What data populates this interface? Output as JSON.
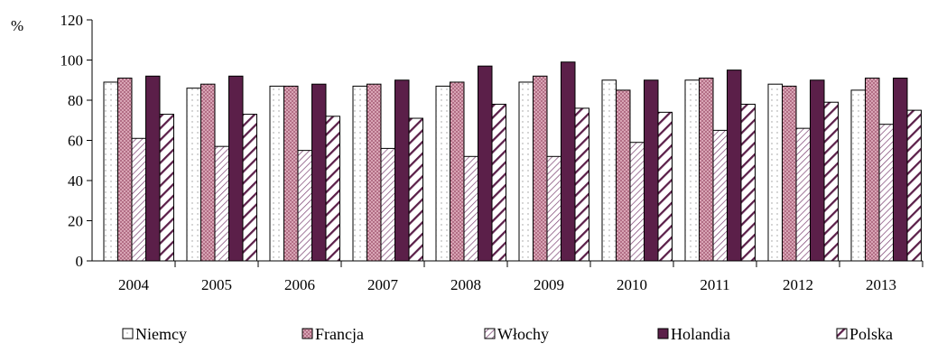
{
  "chart_data": {
    "type": "bar",
    "title": "",
    "xlabel": "",
    "ylabel": "%",
    "ylim": [
      0,
      120
    ],
    "yticks": [
      0,
      20,
      40,
      60,
      80,
      100,
      120
    ],
    "categories": [
      "2004",
      "2005",
      "2006",
      "2007",
      "2008",
      "2009",
      "2010",
      "2011",
      "2012",
      "2013"
    ],
    "series": [
      {
        "name": "Niemcy",
        "pattern": "dots",
        "values": [
          89,
          86,
          87,
          87,
          87,
          89,
          90,
          90,
          88,
          85
        ]
      },
      {
        "name": "Francja",
        "pattern": "crosshatch",
        "values": [
          91,
          88,
          87,
          88,
          89,
          92,
          85,
          91,
          87,
          91
        ]
      },
      {
        "name": "Włochy",
        "pattern": "thin-diag",
        "values": [
          61,
          57,
          55,
          56,
          52,
          52,
          59,
          65,
          66,
          68
        ]
      },
      {
        "name": "Holandia",
        "pattern": "solid",
        "values": [
          92,
          92,
          88,
          90,
          97,
          99,
          90,
          95,
          90,
          91
        ]
      },
      {
        "name": "Polska",
        "pattern": "thick-diag",
        "values": [
          73,
          73,
          72,
          71,
          78,
          76,
          74,
          78,
          79,
          75
        ]
      }
    ],
    "grid": false,
    "legend": "bottom",
    "colors": {
      "francja": "#d9a3b4",
      "holandia": "#5b1f49",
      "polska_stripe": "#5b1f49",
      "wlochy_stripe": "#7a4070"
    }
  }
}
